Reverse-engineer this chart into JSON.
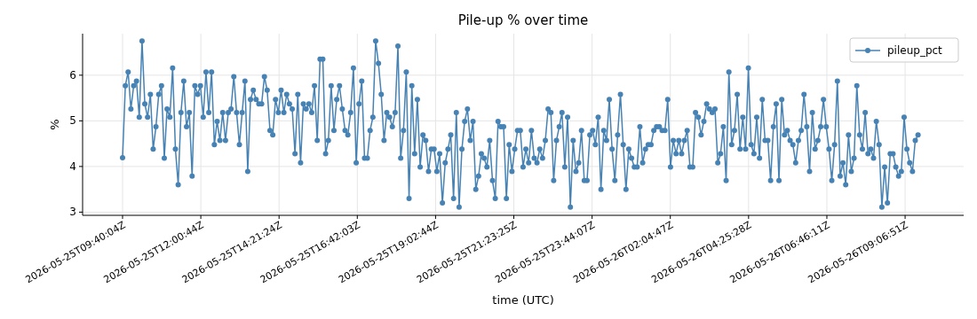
{
  "chart_data": {
    "type": "line",
    "title": "Pile-up % over time",
    "xlabel": "time (UTC)",
    "ylabel": "%",
    "x": [
      "2026-05-25T09:40:04",
      "2026-05-25T09:45:04",
      "2026-05-25T09:50:04",
      "2026-05-25T09:55:04",
      "2026-05-25T10:00:04",
      "2026-05-25T10:05:04",
      "2026-05-25T10:10:04",
      "2026-05-25T10:15:04",
      "2026-05-25T10:20:04",
      "2026-05-25T10:25:04",
      "2026-05-25T10:30:04",
      "2026-05-25T10:35:04",
      "2026-05-25T10:40:04",
      "2026-05-25T10:45:04",
      "2026-05-25T10:50:04",
      "2026-05-25T10:55:04",
      "2026-05-25T11:00:04",
      "2026-05-25T11:05:04",
      "2026-05-25T11:10:04",
      "2026-05-25T11:15:04",
      "2026-05-25T11:20:04",
      "2026-05-25T11:25:04",
      "2026-05-25T11:30:04",
      "2026-05-25T11:35:04",
      "2026-05-25T11:40:04",
      "2026-05-25T11:45:04",
      "2026-05-25T11:50:04",
      "2026-05-25T11:55:04",
      "2026-05-25T12:00:04",
      "2026-05-25T12:05:04",
      "2026-05-25T12:10:04",
      "2026-05-25T12:15:04",
      "2026-05-25T12:20:04",
      "2026-05-25T12:25:04",
      "2026-05-25T12:30:04",
      "2026-05-25T12:35:04",
      "2026-05-25T12:40:04",
      "2026-05-25T12:45:04",
      "2026-05-25T12:50:04",
      "2026-05-25T12:55:04",
      "2026-05-25T13:00:04",
      "2026-05-25T13:05:04",
      "2026-05-25T13:10:04",
      "2026-05-25T13:15:04",
      "2026-05-25T13:20:04",
      "2026-05-25T13:25:04",
      "2026-05-25T13:30:04",
      "2026-05-25T13:35:04",
      "2026-05-25T13:40:04",
      "2026-05-25T13:45:04",
      "2026-05-25T13:50:04",
      "2026-05-25T13:55:04",
      "2026-05-25T14:00:04",
      "2026-05-25T14:05:04",
      "2026-05-25T14:10:04",
      "2026-05-25T14:15:04",
      "2026-05-25T14:20:04",
      "2026-05-25T14:25:04",
      "2026-05-25T14:30:04",
      "2026-05-25T14:35:04",
      "2026-05-25T14:40:04",
      "2026-05-25T14:45:04",
      "2026-05-25T14:50:04",
      "2026-05-25T14:55:04",
      "2026-05-25T15:00:04",
      "2026-05-25T15:05:04",
      "2026-05-25T15:10:04",
      "2026-05-25T15:15:04",
      "2026-05-25T15:20:04",
      "2026-05-25T15:25:04",
      "2026-05-25T15:30:04",
      "2026-05-25T15:35:04",
      "2026-05-25T15:40:04",
      "2026-05-25T15:45:04",
      "2026-05-25T15:50:04",
      "2026-05-25T15:55:04",
      "2026-05-25T16:00:04",
      "2026-05-25T16:05:04",
      "2026-05-25T16:10:04",
      "2026-05-25T16:15:04",
      "2026-05-25T16:20:04",
      "2026-05-25T16:25:04",
      "2026-05-25T16:30:04",
      "2026-05-25T16:35:04",
      "2026-05-25T16:40:04",
      "2026-05-25T16:45:04",
      "2026-05-25T16:50:04",
      "2026-05-25T16:55:04",
      "2026-05-25T17:00:04",
      "2026-05-25T17:05:04",
      "2026-05-25T17:10:04",
      "2026-05-25T17:15:04",
      "2026-05-25T17:20:04",
      "2026-05-25T17:25:04",
      "2026-05-25T17:30:04",
      "2026-05-25T17:35:04",
      "2026-05-25T17:40:04",
      "2026-05-25T17:45:04",
      "2026-05-25T17:50:04",
      "2026-05-25T17:55:04",
      "2026-05-25T18:00:04",
      "2026-05-25T18:05:04",
      "2026-05-25T18:10:04",
      "2026-05-25T18:15:04",
      "2026-05-25T18:20:04",
      "2026-05-25T18:25:04",
      "2026-05-25T18:30:04",
      "2026-05-25T18:35:04",
      "2026-05-25T18:40:04",
      "2026-05-25T18:45:04",
      "2026-05-25T18:50:04",
      "2026-05-25T18:55:04",
      "2026-05-25T19:00:04",
      "2026-05-25T19:05:04",
      "2026-05-25T19:10:04",
      "2026-05-25T19:15:04",
      "2026-05-25T19:20:04",
      "2026-05-25T19:25:04",
      "2026-05-25T19:30:04",
      "2026-05-25T19:35:04",
      "2026-05-25T19:40:04",
      "2026-05-25T19:45:04",
      "2026-05-25T19:50:04",
      "2026-05-25T19:55:04",
      "2026-05-25T20:00:04",
      "2026-05-25T20:05:04",
      "2026-05-25T20:10:04",
      "2026-05-25T20:15:04",
      "2026-05-25T20:20:04",
      "2026-05-25T20:25:04",
      "2026-05-25T20:30:04",
      "2026-05-25T20:35:04",
      "2026-05-25T20:40:04",
      "2026-05-25T20:45:04",
      "2026-05-25T20:50:04",
      "2026-05-25T20:55:04",
      "2026-05-25T21:00:04",
      "2026-05-25T21:05:04",
      "2026-05-25T21:10:04",
      "2026-05-25T21:15:04",
      "2026-05-25T21:20:04",
      "2026-05-25T21:25:04",
      "2026-05-25T21:30:04",
      "2026-05-25T21:35:04",
      "2026-05-25T21:40:04",
      "2026-05-25T21:45:04",
      "2026-05-25T21:50:04",
      "2026-05-25T21:55:04",
      "2026-05-25T22:00:04",
      "2026-05-25T22:05:04",
      "2026-05-25T22:10:04",
      "2026-05-25T22:15:04",
      "2026-05-25T22:20:04",
      "2026-05-25T22:25:04",
      "2026-05-25T22:30:04",
      "2026-05-25T22:35:04",
      "2026-05-25T22:40:04",
      "2026-05-25T22:45:04",
      "2026-05-25T22:50:04",
      "2026-05-25T22:55:04",
      "2026-05-25T23:00:04",
      "2026-05-25T23:05:04",
      "2026-05-25T23:10:04",
      "2026-05-25T23:15:04",
      "2026-05-25T23:20:04",
      "2026-05-25T23:25:04",
      "2026-05-25T23:30:04",
      "2026-05-25T23:35:04",
      "2026-05-25T23:40:04",
      "2026-05-25T23:45:04",
      "2026-05-25T23:50:04",
      "2026-05-25T23:55:04",
      "2026-05-26T00:00:04",
      "2026-05-26T00:05:04",
      "2026-05-26T00:10:04",
      "2026-05-26T00:15:04",
      "2026-05-26T00:20:04",
      "2026-05-26T00:25:04",
      "2026-05-26T00:30:04",
      "2026-05-26T00:35:04",
      "2026-05-26T00:40:04",
      "2026-05-26T00:45:04",
      "2026-05-26T00:50:04",
      "2026-05-26T00:55:04",
      "2026-05-26T01:00:04",
      "2026-05-26T01:05:04",
      "2026-05-26T01:10:04",
      "2026-05-26T01:15:04",
      "2026-05-26T01:20:04",
      "2026-05-26T01:25:04",
      "2026-05-26T01:30:04",
      "2026-05-26T01:35:04",
      "2026-05-26T01:40:04",
      "2026-05-26T01:45:04",
      "2026-05-26T01:50:04",
      "2026-05-26T01:55:04",
      "2026-05-26T02:00:04",
      "2026-05-26T02:05:04",
      "2026-05-26T02:10:04",
      "2026-05-26T02:15:04",
      "2026-05-26T02:20:04",
      "2026-05-26T02:25:04",
      "2026-05-26T02:30:04",
      "2026-05-26T02:35:04",
      "2026-05-26T02:40:04",
      "2026-05-26T02:45:04",
      "2026-05-26T02:50:04",
      "2026-05-26T02:55:04",
      "2026-05-26T03:00:04",
      "2026-05-26T03:05:04",
      "2026-05-26T03:10:04",
      "2026-05-26T03:15:04",
      "2026-05-26T03:20:04",
      "2026-05-26T03:25:04",
      "2026-05-26T03:30:04",
      "2026-05-26T03:35:04",
      "2026-05-26T03:40:04",
      "2026-05-26T03:45:04",
      "2026-05-26T03:50:04",
      "2026-05-26T03:55:04",
      "2026-05-26T04:00:04",
      "2026-05-26T04:05:04",
      "2026-05-26T04:10:04",
      "2026-05-26T04:15:04",
      "2026-05-26T04:20:04",
      "2026-05-26T04:25:04",
      "2026-05-26T04:30:04",
      "2026-05-26T04:35:04",
      "2026-05-26T04:40:04",
      "2026-05-26T04:45:04",
      "2026-05-26T04:50:04",
      "2026-05-26T04:55:04",
      "2026-05-26T05:00:04",
      "2026-05-26T05:05:04",
      "2026-05-26T05:10:04",
      "2026-05-26T05:15:04",
      "2026-05-26T05:20:04",
      "2026-05-26T05:25:04",
      "2026-05-26T05:30:04",
      "2026-05-26T05:35:04",
      "2026-05-26T05:40:04",
      "2026-05-26T05:45:04",
      "2026-05-26T05:50:04",
      "2026-05-26T05:55:04",
      "2026-05-26T06:00:04",
      "2026-05-26T06:05:04",
      "2026-05-26T06:10:04",
      "2026-05-26T06:15:04",
      "2026-05-26T06:20:04",
      "2026-05-26T06:25:04",
      "2026-05-26T06:30:04",
      "2026-05-26T06:35:04",
      "2026-05-26T06:40:04",
      "2026-05-26T06:45:04",
      "2026-05-26T06:50:04",
      "2026-05-26T06:55:04",
      "2026-05-26T07:00:04",
      "2026-05-26T07:05:04",
      "2026-05-26T07:10:04",
      "2026-05-26T07:15:04",
      "2026-05-26T07:20:04",
      "2026-05-26T07:25:04",
      "2026-05-26T07:30:04",
      "2026-05-26T07:35:04",
      "2026-05-26T07:40:04",
      "2026-05-26T07:45:04",
      "2026-05-26T07:50:04",
      "2026-05-26T07:55:04",
      "2026-05-26T08:00:04",
      "2026-05-26T08:05:04",
      "2026-05-26T08:10:04",
      "2026-05-26T08:15:04",
      "2026-05-26T08:20:04",
      "2026-05-26T08:25:04",
      "2026-05-26T08:30:04",
      "2026-05-26T08:35:04",
      "2026-05-26T08:40:04",
      "2026-05-26T08:45:04",
      "2026-05-26T08:50:04",
      "2026-05-26T08:55:04",
      "2026-05-26T09:00:04",
      "2026-05-26T09:05:04",
      "2026-05-26T09:10:04",
      "2026-05-26T09:15:04",
      "2026-05-26T09:20:04",
      "2026-05-26T09:25:04",
      "2026-05-26T09:30:04"
    ],
    "series": [
      {
        "name": "pileup_pct",
        "color": "#4682b4",
        "values": [
          4.19,
          5.77,
          6.07,
          5.26,
          5.77,
          5.87,
          5.08,
          6.75,
          5.37,
          5.08,
          5.58,
          4.38,
          4.87,
          5.58,
          5.77,
          4.18,
          5.26,
          5.08,
          6.16,
          4.38,
          3.6,
          5.18,
          5.87,
          4.87,
          5.18,
          3.79,
          5.77,
          5.58,
          5.77,
          5.08,
          6.07,
          5.18,
          6.07,
          4.48,
          4.99,
          4.57,
          5.18,
          4.57,
          5.18,
          5.26,
          5.97,
          5.18,
          4.48,
          5.18,
          5.87,
          3.89,
          5.47,
          5.67,
          5.47,
          5.37,
          5.37,
          5.97,
          5.67,
          4.79,
          4.69,
          5.47,
          5.18,
          5.67,
          5.18,
          5.58,
          5.37,
          5.26,
          4.28,
          5.58,
          4.08,
          5.37,
          5.26,
          5.37,
          5.18,
          5.77,
          4.57,
          6.35,
          6.35,
          4.28,
          4.57,
          5.77,
          4.79,
          5.47,
          5.77,
          5.26,
          4.79,
          4.69,
          5.18,
          6.16,
          4.08,
          5.37,
          5.87,
          4.18,
          4.18,
          4.79,
          5.08,
          6.75,
          6.26,
          5.58,
          4.57,
          5.18,
          5.08,
          4.87,
          5.18,
          6.64,
          4.18,
          4.79,
          6.07,
          3.3,
          5.77,
          4.28,
          5.47,
          3.99,
          4.69,
          4.57,
          3.89,
          4.38,
          4.38,
          3.89,
          4.28,
          3.2,
          4.08,
          4.38,
          4.69,
          3.3,
          5.18,
          3.11,
          4.38,
          4.99,
          5.26,
          4.57,
          4.99,
          3.5,
          3.79,
          4.28,
          4.18,
          3.99,
          4.57,
          3.69,
          3.3,
          4.99,
          4.87,
          4.87,
          3.3,
          4.48,
          3.89,
          4.38,
          4.79,
          4.79,
          3.99,
          4.38,
          4.08,
          4.79,
          4.18,
          4.08,
          4.38,
          4.18,
          4.57,
          5.26,
          5.18,
          3.69,
          4.57,
          4.87,
          5.18,
          3.99,
          5.08,
          3.11,
          4.57,
          3.89,
          4.08,
          4.79,
          3.69,
          3.69,
          4.69,
          4.79,
          4.48,
          5.08,
          3.5,
          4.79,
          4.57,
          5.47,
          4.38,
          3.69,
          4.69,
          5.58,
          4.48,
          3.5,
          4.38,
          4.18,
          3.99,
          3.99,
          4.87,
          4.08,
          4.38,
          4.48,
          4.48,
          4.79,
          4.87,
          4.87,
          4.79,
          4.79,
          5.47,
          3.99,
          4.57,
          4.28,
          4.57,
          4.28,
          4.57,
          4.79,
          3.99,
          3.99,
          5.18,
          5.08,
          4.69,
          4.99,
          5.37,
          5.26,
          5.18,
          5.26,
          4.08,
          4.28,
          4.87,
          3.69,
          6.07,
          4.48,
          4.79,
          5.58,
          4.38,
          5.08,
          4.38,
          6.16,
          4.48,
          4.28,
          5.08,
          4.18,
          5.47,
          4.57,
          4.57,
          3.69,
          4.87,
          5.37,
          3.69,
          5.47,
          4.69,
          4.79,
          4.57,
          4.48,
          4.08,
          4.57,
          4.79,
          5.58,
          4.87,
          3.89,
          5.18,
          4.38,
          4.57,
          4.87,
          5.47,
          4.87,
          4.38,
          3.69,
          4.48,
          5.87,
          3.79,
          4.08,
          3.6,
          4.69,
          3.89,
          4.18,
          5.77,
          4.69,
          4.38,
          5.18,
          4.28,
          4.38,
          4.18,
          4.99,
          4.48,
          3.11,
          3.99,
          3.2,
          4.28,
          4.28,
          3.99,
          3.79,
          3.89,
          5.08,
          4.38,
          4.08,
          3.89,
          4.57,
          4.69
        ]
      }
    ],
    "xlim": [
      "2026-05-25T08:28:13",
      "2026-05-26T10:52:07"
    ],
    "xticks": [
      {
        "value": "2026-05-25T09:40:04",
        "label": "2026-05-25T09:40:04Z"
      },
      {
        "value": "2026-05-25T12:00:44",
        "label": "2026-05-25T12:00:44Z"
      },
      {
        "value": "2026-05-25T14:21:24",
        "label": "2026-05-25T14:21:24Z"
      },
      {
        "value": "2026-05-25T16:42:03",
        "label": "2026-05-25T16:42:03Z"
      },
      {
        "value": "2026-05-25T19:02:44",
        "label": "2026-05-25T19:02:44Z"
      },
      {
        "value": "2026-05-25T21:23:25",
        "label": "2026-05-25T21:23:25Z"
      },
      {
        "value": "2026-05-25T23:44:07",
        "label": "2026-05-25T23:44:07Z"
      },
      {
        "value": "2026-05-26T02:04:47",
        "label": "2026-05-26T02:04:47Z"
      },
      {
        "value": "2026-05-26T04:25:28",
        "label": "2026-05-26T04:25:28Z"
      },
      {
        "value": "2026-05-26T06:46:11",
        "label": "2026-05-26T06:46:11Z"
      },
      {
        "value": "2026-05-26T09:06:51",
        "label": "2026-05-26T09:06:51Z"
      }
    ],
    "ylim": [
      2.93,
      6.91
    ],
    "yticks": [
      3,
      4,
      5,
      6
    ],
    "grid": true,
    "legend": "top right",
    "marker": "circle",
    "line_style": "solid"
  }
}
